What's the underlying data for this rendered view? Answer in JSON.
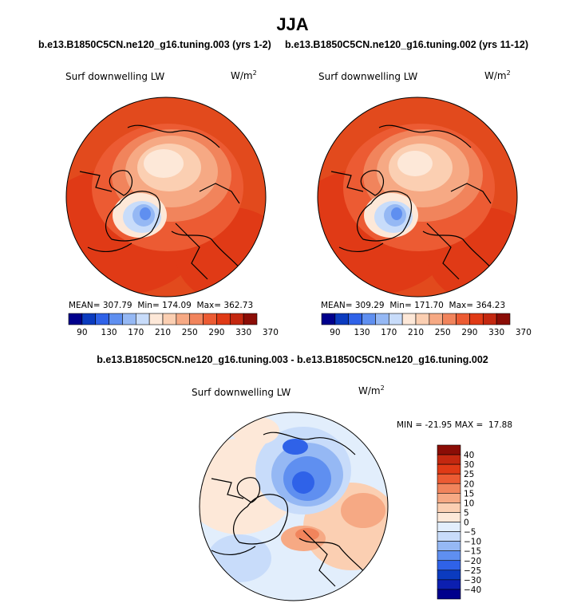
{
  "page": {
    "title": "JJA",
    "diff_title": "b.e13.B1850C5CN.ne120_g16.tuning.003 - b.e13.B1850C5CN.ne120_g16.tuning.002"
  },
  "chart_data": [
    {
      "type": "heatmap",
      "projection": "north-polar-stereographic",
      "title": "b.e13.B1850C5CN.ne120_g16.tuning.003 (yrs 1-2)",
      "variable_label": "Surf downwelling LW",
      "units_base": "W/m",
      "units_exp": "2",
      "stats": {
        "mean_label": "MEAN=",
        "mean": "307.79",
        "min_label": "Min=",
        "min": "174.09",
        "max_label": "Max=",
        "max": "362.73"
      },
      "colorbar_levels": [
        "90",
        "130",
        "170",
        "210",
        "250",
        "290",
        "330",
        "370"
      ],
      "colors": [
        "#00008c",
        "#0b3bbf",
        "#2f62e8",
        "#5f8ff0",
        "#95b8f4",
        "#c8dcfa",
        "#fde8d8",
        "#fbcfb2",
        "#f6a984",
        "#f1845c",
        "#ec5b33",
        "#e03a16",
        "#c42810",
        "#8b0d06"
      ]
    },
    {
      "type": "heatmap",
      "projection": "north-polar-stereographic",
      "title": "b.e13.B1850C5CN.ne120_g16.tuning.002 (yrs 11-12)",
      "variable_label": "Surf downwelling LW",
      "units_base": "W/m",
      "units_exp": "2",
      "stats": {
        "mean_label": "MEAN=",
        "mean": "309.29",
        "min_label": "Min=",
        "min": "171.70",
        "max_label": "Max=",
        "max": "364.23"
      },
      "colorbar_levels": [
        "90",
        "130",
        "170",
        "210",
        "250",
        "290",
        "330",
        "370"
      ],
      "colors": [
        "#00008c",
        "#0b3bbf",
        "#2f62e8",
        "#5f8ff0",
        "#95b8f4",
        "#c8dcfa",
        "#fde8d8",
        "#fbcfb2",
        "#f6a984",
        "#f1845c",
        "#ec5b33",
        "#e03a16",
        "#c42810",
        "#8b0d06"
      ]
    },
    {
      "type": "heatmap",
      "projection": "north-polar-stereographic",
      "title": "b.e13.B1850C5CN.ne120_g16.tuning.003 - b.e13.B1850C5CN.ne120_g16.tuning.002",
      "variable_label": "Surf downwelling LW",
      "units_base": "W/m",
      "units_exp": "2",
      "stats": {
        "min_label": "MIN =",
        "min": "-21.95",
        "max_label": "MAX =",
        "max": "17.88"
      },
      "colorbar_levels": [
        "40",
        "30",
        "25",
        "20",
        "15",
        "10",
        "5",
        "0",
        "−5",
        "−10",
        "−15",
        "−20",
        "−25",
        "−30",
        "−40"
      ],
      "colors": [
        "#8b0d06",
        "#c42810",
        "#e03a16",
        "#ec5b33",
        "#f1845c",
        "#f6a984",
        "#fbcfb2",
        "#fde8d8",
        "#e2eefc",
        "#c8dcfa",
        "#95b8f4",
        "#5f8ff0",
        "#2f62e8",
        "#0b3bbf",
        "#0c1fb0",
        "#00008c"
      ]
    }
  ]
}
